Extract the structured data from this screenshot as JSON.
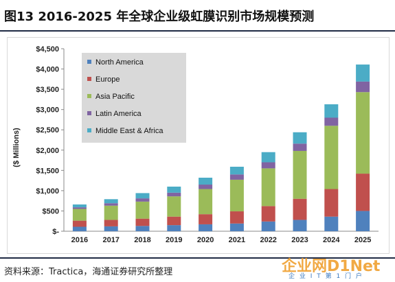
{
  "header": {
    "title": "图13 2016-2025 年全球企业级虹膜识别市场规模预测"
  },
  "source": {
    "text": "资料来源：Tractica，海通证券研究所整理"
  },
  "watermark": {
    "main": "企业网D1Net",
    "sub": "企 业 I T 第 1 门 户"
  },
  "colors": {
    "North America": "#4f81bd",
    "Europe": "#c0504d",
    "Asia Pacific": "#9bbb59",
    "Latin America": "#8064a2",
    "Middle East & Africa": "#4bacc6",
    "legend_bg": "#d9d9d9"
  },
  "chart_data": {
    "type": "bar",
    "stacked": true,
    "ylabel": "($ Millions)",
    "xlabel": "",
    "ylim": [
      0,
      4500
    ],
    "ytick_values": [
      0,
      500,
      1000,
      1500,
      2000,
      2500,
      3000,
      3500,
      4000,
      4500
    ],
    "yticks": [
      "$-",
      "$500",
      "$1,000",
      "$1,500",
      "$2,000",
      "$2,500",
      "$3,000",
      "$3,500",
      "$4,000",
      "$4,500"
    ],
    "grid": false,
    "legend_position": "top-left",
    "categories": [
      "2016",
      "2017",
      "2018",
      "2019",
      "2020",
      "2021",
      "2022",
      "2023",
      "2024",
      "2025"
    ],
    "series": [
      {
        "name": "North America",
        "values": [
          110,
          120,
          130,
          150,
          170,
          190,
          240,
          280,
          360,
          500
        ]
      },
      {
        "name": "Europe",
        "values": [
          150,
          160,
          180,
          210,
          250,
          300,
          380,
          520,
          680,
          920
        ]
      },
      {
        "name": "Asia Pacific",
        "values": [
          290,
          350,
          420,
          500,
          620,
          780,
          930,
          1180,
          1560,
          2010
        ]
      },
      {
        "name": "Latin America",
        "values": [
          40,
          60,
          80,
          90,
          110,
          130,
          150,
          180,
          200,
          260
        ]
      },
      {
        "name": "Middle East & Africa",
        "values": [
          70,
          100,
          130,
          150,
          170,
          190,
          250,
          280,
          330,
          420
        ]
      }
    ]
  }
}
